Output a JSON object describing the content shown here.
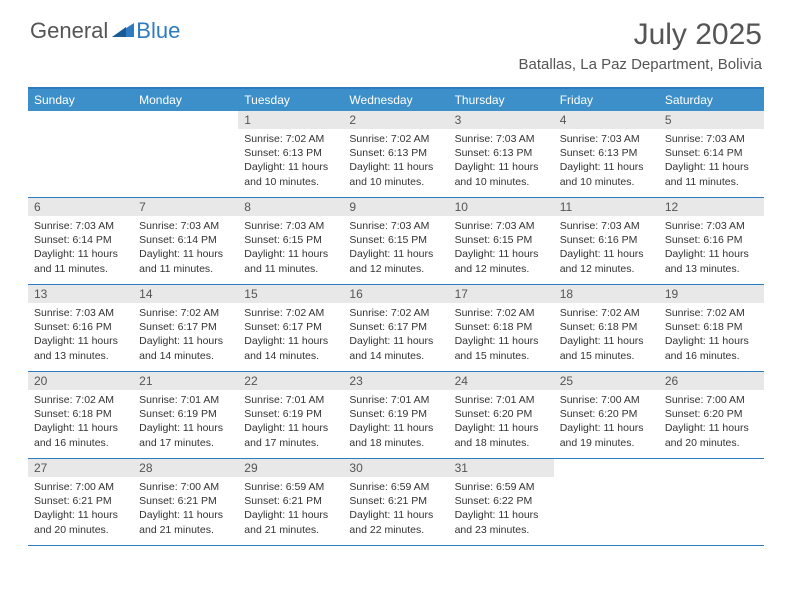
{
  "logo": {
    "general": "General",
    "blue": "Blue"
  },
  "title": "July 2025",
  "location": "Batallas, La Paz Department, Bolivia",
  "colors": {
    "header_bar": "#3d8fc9",
    "border": "#2d7bc0",
    "daynum_bg": "#e8e8e8",
    "text": "#333333",
    "title_text": "#555555"
  },
  "typography": {
    "title_fontsize": 30,
    "location_fontsize": 15,
    "dayheader_fontsize": 12,
    "daynum_fontsize": 12,
    "body_fontsize": 10.5
  },
  "day_names": [
    "Sunday",
    "Monday",
    "Tuesday",
    "Wednesday",
    "Thursday",
    "Friday",
    "Saturday"
  ],
  "weeks": [
    [
      {
        "empty": true
      },
      {
        "empty": true
      },
      {
        "day": "1",
        "sunrise": "Sunrise: 7:02 AM",
        "sunset": "Sunset: 6:13 PM",
        "daylight1": "Daylight: 11 hours",
        "daylight2": "and 10 minutes."
      },
      {
        "day": "2",
        "sunrise": "Sunrise: 7:02 AM",
        "sunset": "Sunset: 6:13 PM",
        "daylight1": "Daylight: 11 hours",
        "daylight2": "and 10 minutes."
      },
      {
        "day": "3",
        "sunrise": "Sunrise: 7:03 AM",
        "sunset": "Sunset: 6:13 PM",
        "daylight1": "Daylight: 11 hours",
        "daylight2": "and 10 minutes."
      },
      {
        "day": "4",
        "sunrise": "Sunrise: 7:03 AM",
        "sunset": "Sunset: 6:13 PM",
        "daylight1": "Daylight: 11 hours",
        "daylight2": "and 10 minutes."
      },
      {
        "day": "5",
        "sunrise": "Sunrise: 7:03 AM",
        "sunset": "Sunset: 6:14 PM",
        "daylight1": "Daylight: 11 hours",
        "daylight2": "and 11 minutes."
      }
    ],
    [
      {
        "day": "6",
        "sunrise": "Sunrise: 7:03 AM",
        "sunset": "Sunset: 6:14 PM",
        "daylight1": "Daylight: 11 hours",
        "daylight2": "and 11 minutes."
      },
      {
        "day": "7",
        "sunrise": "Sunrise: 7:03 AM",
        "sunset": "Sunset: 6:14 PM",
        "daylight1": "Daylight: 11 hours",
        "daylight2": "and 11 minutes."
      },
      {
        "day": "8",
        "sunrise": "Sunrise: 7:03 AM",
        "sunset": "Sunset: 6:15 PM",
        "daylight1": "Daylight: 11 hours",
        "daylight2": "and 11 minutes."
      },
      {
        "day": "9",
        "sunrise": "Sunrise: 7:03 AM",
        "sunset": "Sunset: 6:15 PM",
        "daylight1": "Daylight: 11 hours",
        "daylight2": "and 12 minutes."
      },
      {
        "day": "10",
        "sunrise": "Sunrise: 7:03 AM",
        "sunset": "Sunset: 6:15 PM",
        "daylight1": "Daylight: 11 hours",
        "daylight2": "and 12 minutes."
      },
      {
        "day": "11",
        "sunrise": "Sunrise: 7:03 AM",
        "sunset": "Sunset: 6:16 PM",
        "daylight1": "Daylight: 11 hours",
        "daylight2": "and 12 minutes."
      },
      {
        "day": "12",
        "sunrise": "Sunrise: 7:03 AM",
        "sunset": "Sunset: 6:16 PM",
        "daylight1": "Daylight: 11 hours",
        "daylight2": "and 13 minutes."
      }
    ],
    [
      {
        "day": "13",
        "sunrise": "Sunrise: 7:03 AM",
        "sunset": "Sunset: 6:16 PM",
        "daylight1": "Daylight: 11 hours",
        "daylight2": "and 13 minutes."
      },
      {
        "day": "14",
        "sunrise": "Sunrise: 7:02 AM",
        "sunset": "Sunset: 6:17 PM",
        "daylight1": "Daylight: 11 hours",
        "daylight2": "and 14 minutes."
      },
      {
        "day": "15",
        "sunrise": "Sunrise: 7:02 AM",
        "sunset": "Sunset: 6:17 PM",
        "daylight1": "Daylight: 11 hours",
        "daylight2": "and 14 minutes."
      },
      {
        "day": "16",
        "sunrise": "Sunrise: 7:02 AM",
        "sunset": "Sunset: 6:17 PM",
        "daylight1": "Daylight: 11 hours",
        "daylight2": "and 14 minutes."
      },
      {
        "day": "17",
        "sunrise": "Sunrise: 7:02 AM",
        "sunset": "Sunset: 6:18 PM",
        "daylight1": "Daylight: 11 hours",
        "daylight2": "and 15 minutes."
      },
      {
        "day": "18",
        "sunrise": "Sunrise: 7:02 AM",
        "sunset": "Sunset: 6:18 PM",
        "daylight1": "Daylight: 11 hours",
        "daylight2": "and 15 minutes."
      },
      {
        "day": "19",
        "sunrise": "Sunrise: 7:02 AM",
        "sunset": "Sunset: 6:18 PM",
        "daylight1": "Daylight: 11 hours",
        "daylight2": "and 16 minutes."
      }
    ],
    [
      {
        "day": "20",
        "sunrise": "Sunrise: 7:02 AM",
        "sunset": "Sunset: 6:18 PM",
        "daylight1": "Daylight: 11 hours",
        "daylight2": "and 16 minutes."
      },
      {
        "day": "21",
        "sunrise": "Sunrise: 7:01 AM",
        "sunset": "Sunset: 6:19 PM",
        "daylight1": "Daylight: 11 hours",
        "daylight2": "and 17 minutes."
      },
      {
        "day": "22",
        "sunrise": "Sunrise: 7:01 AM",
        "sunset": "Sunset: 6:19 PM",
        "daylight1": "Daylight: 11 hours",
        "daylight2": "and 17 minutes."
      },
      {
        "day": "23",
        "sunrise": "Sunrise: 7:01 AM",
        "sunset": "Sunset: 6:19 PM",
        "daylight1": "Daylight: 11 hours",
        "daylight2": "and 18 minutes."
      },
      {
        "day": "24",
        "sunrise": "Sunrise: 7:01 AM",
        "sunset": "Sunset: 6:20 PM",
        "daylight1": "Daylight: 11 hours",
        "daylight2": "and 18 minutes."
      },
      {
        "day": "25",
        "sunrise": "Sunrise: 7:00 AM",
        "sunset": "Sunset: 6:20 PM",
        "daylight1": "Daylight: 11 hours",
        "daylight2": "and 19 minutes."
      },
      {
        "day": "26",
        "sunrise": "Sunrise: 7:00 AM",
        "sunset": "Sunset: 6:20 PM",
        "daylight1": "Daylight: 11 hours",
        "daylight2": "and 20 minutes."
      }
    ],
    [
      {
        "day": "27",
        "sunrise": "Sunrise: 7:00 AM",
        "sunset": "Sunset: 6:21 PM",
        "daylight1": "Daylight: 11 hours",
        "daylight2": "and 20 minutes."
      },
      {
        "day": "28",
        "sunrise": "Sunrise: 7:00 AM",
        "sunset": "Sunset: 6:21 PM",
        "daylight1": "Daylight: 11 hours",
        "daylight2": "and 21 minutes."
      },
      {
        "day": "29",
        "sunrise": "Sunrise: 6:59 AM",
        "sunset": "Sunset: 6:21 PM",
        "daylight1": "Daylight: 11 hours",
        "daylight2": "and 21 minutes."
      },
      {
        "day": "30",
        "sunrise": "Sunrise: 6:59 AM",
        "sunset": "Sunset: 6:21 PM",
        "daylight1": "Daylight: 11 hours",
        "daylight2": "and 22 minutes."
      },
      {
        "day": "31",
        "sunrise": "Sunrise: 6:59 AM",
        "sunset": "Sunset: 6:22 PM",
        "daylight1": "Daylight: 11 hours",
        "daylight2": "and 23 minutes."
      },
      {
        "empty": true
      },
      {
        "empty": true
      }
    ]
  ]
}
